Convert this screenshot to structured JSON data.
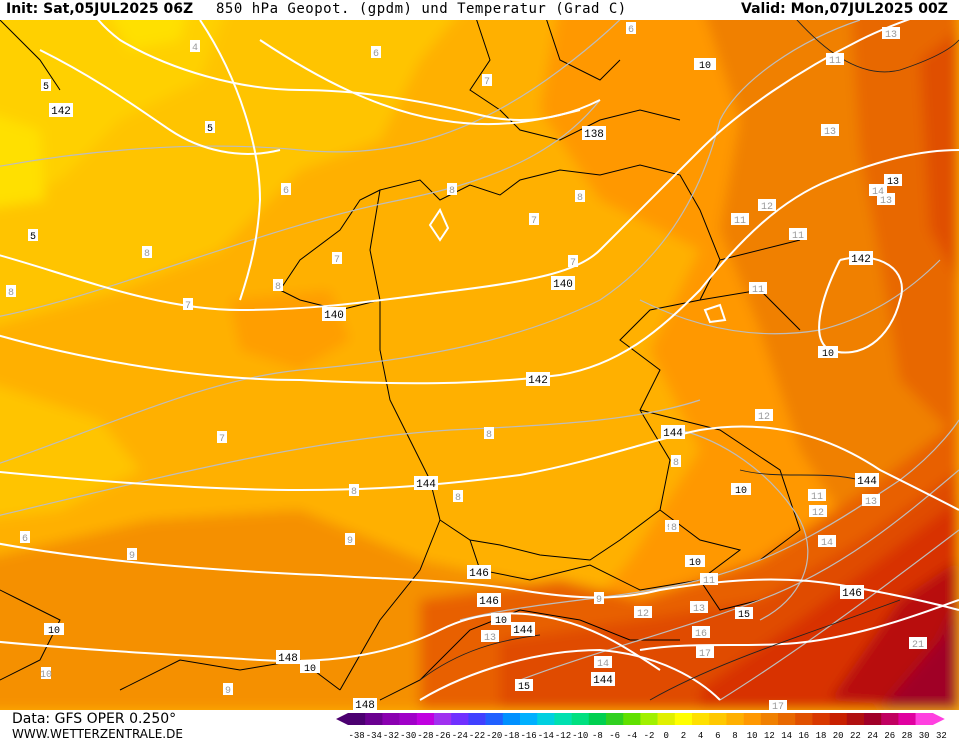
{
  "header": {
    "init": "Init: Sat,05JUL2025 06Z",
    "title": "850 hPa Geopot. (gpdm) und Temperatur (Grad C)",
    "valid": "Valid: Mon,07JUL2025 00Z"
  },
  "footer": {
    "data_source": "Data: GFS OPER 0.250°",
    "website": "WWW.WETTERZENTRALE.DE"
  },
  "legend": {
    "ticks": [
      "-38",
      "-34",
      "-32",
      "-30",
      "-28",
      "-26",
      "-24",
      "-22",
      "-20",
      "-18",
      "-16",
      "-14",
      "-12",
      "-10",
      "-8",
      "-6",
      "-4",
      "-2",
      "0",
      "2",
      "4",
      "6",
      "8",
      "10",
      "12",
      "14",
      "16",
      "18",
      "20",
      "22",
      "24",
      "26",
      "28",
      "30",
      "32"
    ],
    "colors": [
      "#4b0070",
      "#6a0090",
      "#8a00b0",
      "#a000c8",
      "#c000e0",
      "#a030f0",
      "#7030ff",
      "#4040ff",
      "#2060ff",
      "#0090ff",
      "#00b0ff",
      "#00d0e0",
      "#00e0b0",
      "#00e080",
      "#00d050",
      "#30d020",
      "#60e000",
      "#a0f000",
      "#e0f000",
      "#ffff00",
      "#ffe000",
      "#ffc800",
      "#ffb000",
      "#ff9800",
      "#f08000",
      "#e86800",
      "#e05000",
      "#d83800",
      "#c82000",
      "#b01010",
      "#a00028",
      "#c00060",
      "#e000a0",
      "#ff40e0"
    ]
  },
  "map": {
    "geopotential_labels": [
      "142",
      "138",
      "140",
      "140",
      "142",
      "142",
      "144",
      "144",
      "144",
      "146",
      "146",
      "144",
      "146",
      "148",
      "148",
      "144",
      "148"
    ],
    "temperature_labels": [
      "4",
      "5",
      "5",
      "5",
      "6",
      "6",
      "6",
      "7",
      "7",
      "7",
      "7",
      "7",
      "7",
      "8",
      "8",
      "8",
      "8",
      "8",
      "8",
      "8",
      "8",
      "8",
      "9",
      "9",
      "9",
      "9",
      "9",
      "10",
      "10",
      "10",
      "10",
      "10",
      "10",
      "10",
      "11",
      "11",
      "11",
      "11",
      "11",
      "11",
      "12",
      "12",
      "12",
      "12",
      "13",
      "13",
      "13",
      "13",
      "13",
      "13",
      "14",
      "14",
      "14",
      "15",
      "15",
      "16",
      "17",
      "17",
      "21",
      "8",
      "6"
    ]
  }
}
